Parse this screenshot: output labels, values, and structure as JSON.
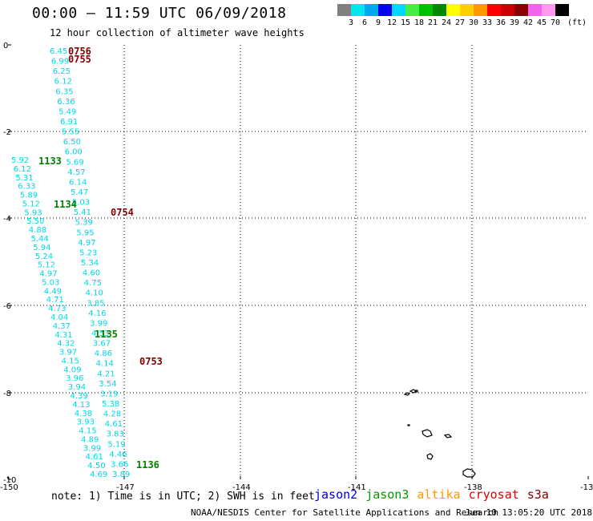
{
  "title": "00:00 – 11:59 UTC 06/09/2018",
  "subtitle": "12 hour collection of altimeter wave heights",
  "legend": {
    "unit": "(ft)",
    "labels": [
      "3",
      "6",
      "9",
      "12",
      "15",
      "18",
      "21",
      "24",
      "27",
      "30",
      "33",
      "36",
      "39",
      "42",
      "45",
      "70"
    ],
    "colors": [
      "#808080",
      "#00e5ee",
      "#00a8ee",
      "#0000ee",
      "#00d8ff",
      "#44ee44",
      "#00c000",
      "#008800",
      "#ffff00",
      "#ffd000",
      "#ff9900",
      "#ff0000",
      "#cc0000",
      "#880000",
      "#ee66ee",
      "#ff99ee",
      "#000000"
    ]
  },
  "axes": {
    "x_labels": [
      "-150",
      "-147",
      "-144",
      "-141",
      "-138",
      "-13"
    ],
    "y_labels": [
      "0",
      "-2",
      "-4",
      "-6",
      "-8",
      "-10"
    ]
  },
  "tracks": [
    {
      "name": "cyan-left-a",
      "values": [
        "6.45",
        "6.99",
        "6.25",
        "6.12",
        "6.35",
        "6.36",
        "5.49",
        "6.91",
        "5.55",
        "6.50",
        "6.00",
        "5.69",
        "4.57",
        "6.14",
        "5.47",
        "5.03",
        "5.41",
        "5.39",
        "5.95",
        "4.97",
        "5.23",
        "5.34",
        "4.60",
        "4.75",
        "4.10",
        "3.85",
        "4.16",
        "3.99",
        "4.53",
        "3.67",
        "4.86",
        "4.14",
        "4.21",
        "3.54",
        "3.19",
        "5.38",
        "4.28",
        "4.61",
        "3.83",
        "5.19",
        "4.46",
        "3.66",
        "3.89"
      ]
    },
    {
      "name": "cyan-left-b",
      "values": [
        "5.92",
        "6.12",
        "5.31",
        "6.33",
        "5.89",
        "5.12",
        "5.93",
        "5.50",
        "4.88",
        "5.44",
        "5.94",
        "5.24",
        "5.12",
        "4.97",
        "5.03",
        "4.49",
        "4.71",
        "4.73",
        "4.04",
        "4.37",
        "4.31",
        "4.32",
        "3.97",
        "4.15",
        "4.09",
        "3.96",
        "3.94",
        "4.39",
        "4.13",
        "4.38",
        "3.93",
        "4.15",
        "4.89",
        "3.99",
        "4.61",
        "4.50",
        "4.69"
      ]
    }
  ],
  "time_labels": [
    {
      "text": "0756",
      "color": "#800000"
    },
    {
      "text": "0755",
      "color": "#800000"
    },
    {
      "text": "0754",
      "color": "#800000"
    },
    {
      "text": "0753",
      "color": "#800000"
    },
    {
      "text": "1133",
      "color": "#008000"
    },
    {
      "text": "1134",
      "color": "#008000"
    },
    {
      "text": "1135",
      "color": "#008000"
    },
    {
      "text": "1136",
      "color": "#008000"
    }
  ],
  "note": "note: 1) Time is in UTC; 2) SWH is in feet",
  "satellites": [
    {
      "name": "jason2",
      "color": "#0000dd"
    },
    {
      "name": "jason3",
      "color": "#009900"
    },
    {
      "name": "altika",
      "color": "#ff9900"
    },
    {
      "name": "cryosat",
      "color": "#dd0000"
    },
    {
      "name": "s3a",
      "color": "#800000"
    }
  ],
  "credit": "NOAA/NESDIS Center for Satellite Applications and Research",
  "generated": "Jun 10 13:05:20 UTC 2018",
  "colors": {
    "track": "#00d8e8",
    "grid": "#000000"
  }
}
